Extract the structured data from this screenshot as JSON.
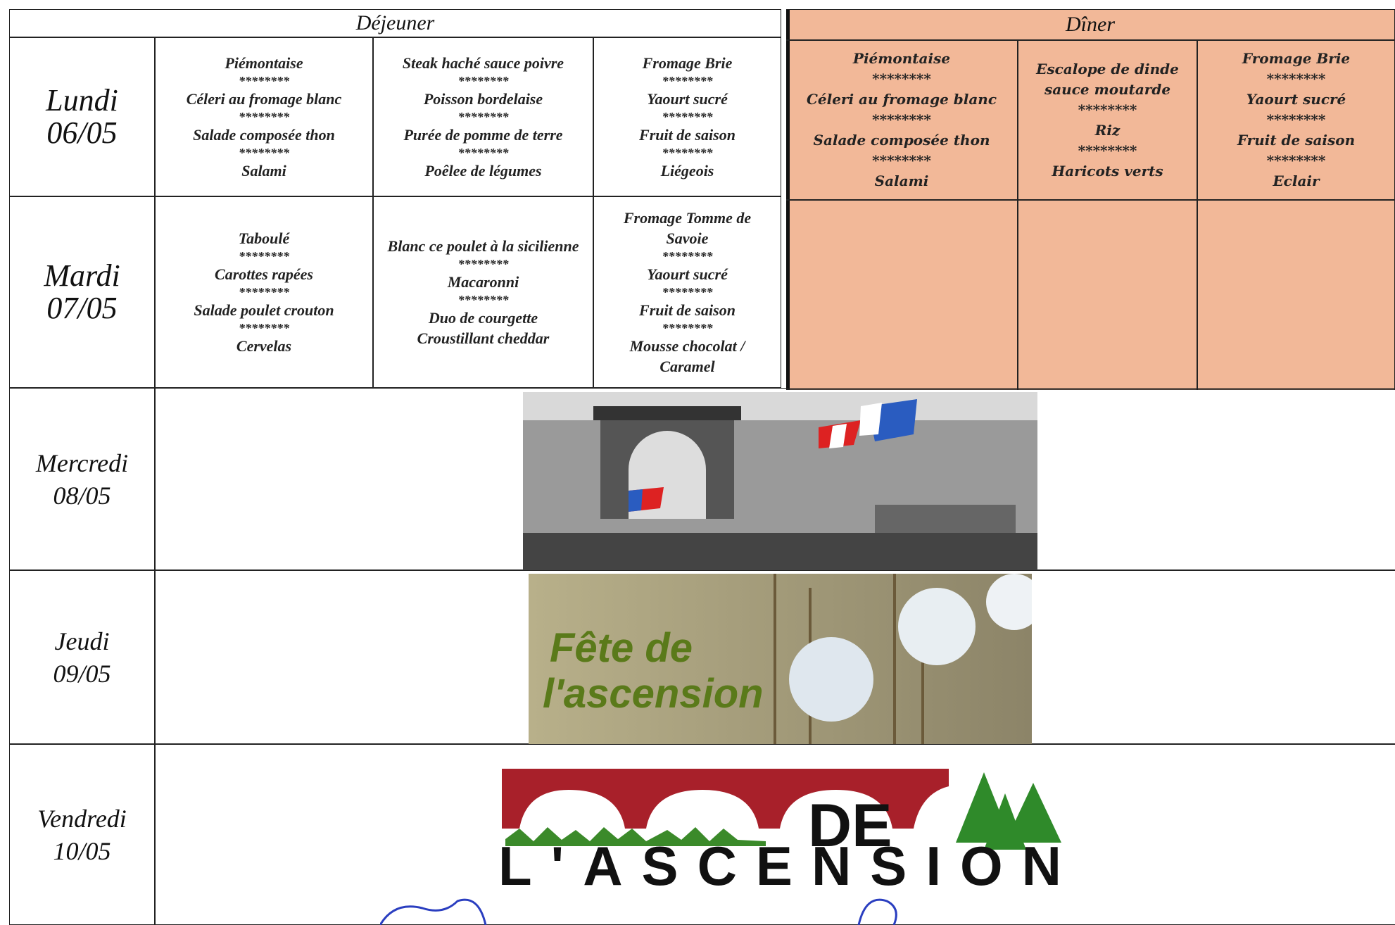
{
  "header": {
    "lunch": "Déjeuner",
    "dinner": "Dîner"
  },
  "days": [
    {
      "name": "Lundi",
      "date": "06/05",
      "lunch": [
        [
          "Piémontaise",
          "********",
          "Céleri au fromage blanc",
          "********",
          "Salade composée thon",
          "********",
          "Salami"
        ],
        [
          "Steak haché sauce poivre",
          "********",
          "Poisson bordelaise",
          "********",
          "Purée de pomme de terre",
          "********",
          "Poêlee de légumes"
        ],
        [
          "Fromage Brie",
          "********",
          "Yaourt sucré",
          "********",
          "Fruit de saison",
          "********",
          "Liégeois"
        ]
      ],
      "dinner": [
        [
          "Piémontaise",
          "********",
          "Céleri au fromage blanc",
          "********",
          "Salade composée thon",
          "********",
          "Salami"
        ],
        [
          "Escalope de dinde sauce moutarde",
          "********",
          "Riz",
          "********",
          "Haricots verts"
        ],
        [
          "Fromage Brie",
          "********",
          "Yaourt sucré",
          "********",
          "Fruit de saison",
          "********",
          "Eclair"
        ]
      ]
    },
    {
      "name": "Mardi",
      "date": "07/05",
      "lunch": [
        [
          "Taboulé",
          "********",
          "Carottes rapées",
          "********",
          "Salade poulet crouton",
          "********",
          "Cervelas"
        ],
        [
          "Blanc ce poulet à la sicilienne",
          "********",
          "Macaronni",
          "********",
          "Duo de courgette",
          "Croustillant cheddar"
        ],
        [
          "Fromage Tomme de Savoie",
          "********",
          "Yaourt sucré",
          "********",
          "Fruit de saison",
          "********",
          "Mousse chocolat / Caramel"
        ]
      ],
      "dinner": [
        [],
        [],
        []
      ]
    },
    {
      "name": "Mercredi",
      "date": "08/05"
    },
    {
      "name": "Jeudi",
      "date": "09/05"
    },
    {
      "name": "Vendredi",
      "date": "10/05"
    }
  ],
  "images": {
    "thursday": [
      "Fête de",
      "l'ascension"
    ],
    "friday": [
      "DE",
      "L'ASCENSION"
    ]
  }
}
